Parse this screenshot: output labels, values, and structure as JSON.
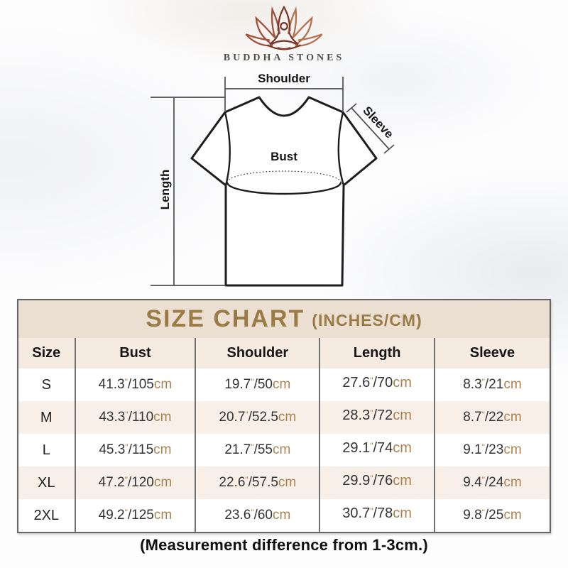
{
  "brand": {
    "name": "BUDDHA STONES",
    "logo_icon": "lotus-meditation-icon"
  },
  "diagram": {
    "labels": {
      "shoulder": "Shoulder",
      "sleeve": "Sleeve",
      "bust": "Bust",
      "length": "Length"
    }
  },
  "size_chart": {
    "title": "SIZE CHART",
    "title_suffix": "(INCHES/CM)",
    "columns": [
      "Size",
      "Bust",
      "Shoulder",
      "Length",
      "Sleeve"
    ],
    "unit_inch_mark": "\"",
    "unit_cm": "cm",
    "rows": [
      {
        "size": "S",
        "bust": {
          "in": "41.3",
          "cm": "105"
        },
        "shoulder": {
          "in": "19.7",
          "cm": "50"
        },
        "length": {
          "in": "27.6",
          "cm": "70"
        },
        "sleeve": {
          "in": "8.3",
          "cm": "21"
        }
      },
      {
        "size": "M",
        "bust": {
          "in": "43.3",
          "cm": "110"
        },
        "shoulder": {
          "in": "20.7",
          "cm": "52.5"
        },
        "length": {
          "in": "28.3",
          "cm": "72"
        },
        "sleeve": {
          "in": "8.7",
          "cm": "22"
        }
      },
      {
        "size": "L",
        "bust": {
          "in": "45.3",
          "cm": "115"
        },
        "shoulder": {
          "in": "21.7",
          "cm": "55"
        },
        "length": {
          "in": "29.1",
          "cm": "74"
        },
        "sleeve": {
          "in": "9.1",
          "cm": "23"
        }
      },
      {
        "size": "XL",
        "bust": {
          "in": "47.2",
          "cm": "120"
        },
        "shoulder": {
          "in": "22.6",
          "cm": "57.5"
        },
        "length": {
          "in": "29.9",
          "cm": "76"
        },
        "sleeve": {
          "in": "9.4",
          "cm": "24"
        }
      },
      {
        "size": "2XL",
        "bust": {
          "in": "49.2",
          "cm": "125"
        },
        "shoulder": {
          "in": "23.6",
          "cm": "60"
        },
        "length": {
          "in": "30.7",
          "cm": "78"
        },
        "sleeve": {
          "in": "9.8",
          "cm": "25"
        }
      }
    ]
  },
  "footer": {
    "note": "(Measurement difference from 1-3cm.)"
  },
  "colors": {
    "title_gold": "#9b7b45",
    "unit_gold": "#aa8350",
    "band_bg": "#ebdfd2",
    "header_row_bg": "#f5ebe1",
    "alt_row_bg": "#f7efe8",
    "table_border": "#666666",
    "logo_left_petals": "#a14f38",
    "logo_right_petals": "#b5714c",
    "logo_figure": "#7c392d"
  }
}
